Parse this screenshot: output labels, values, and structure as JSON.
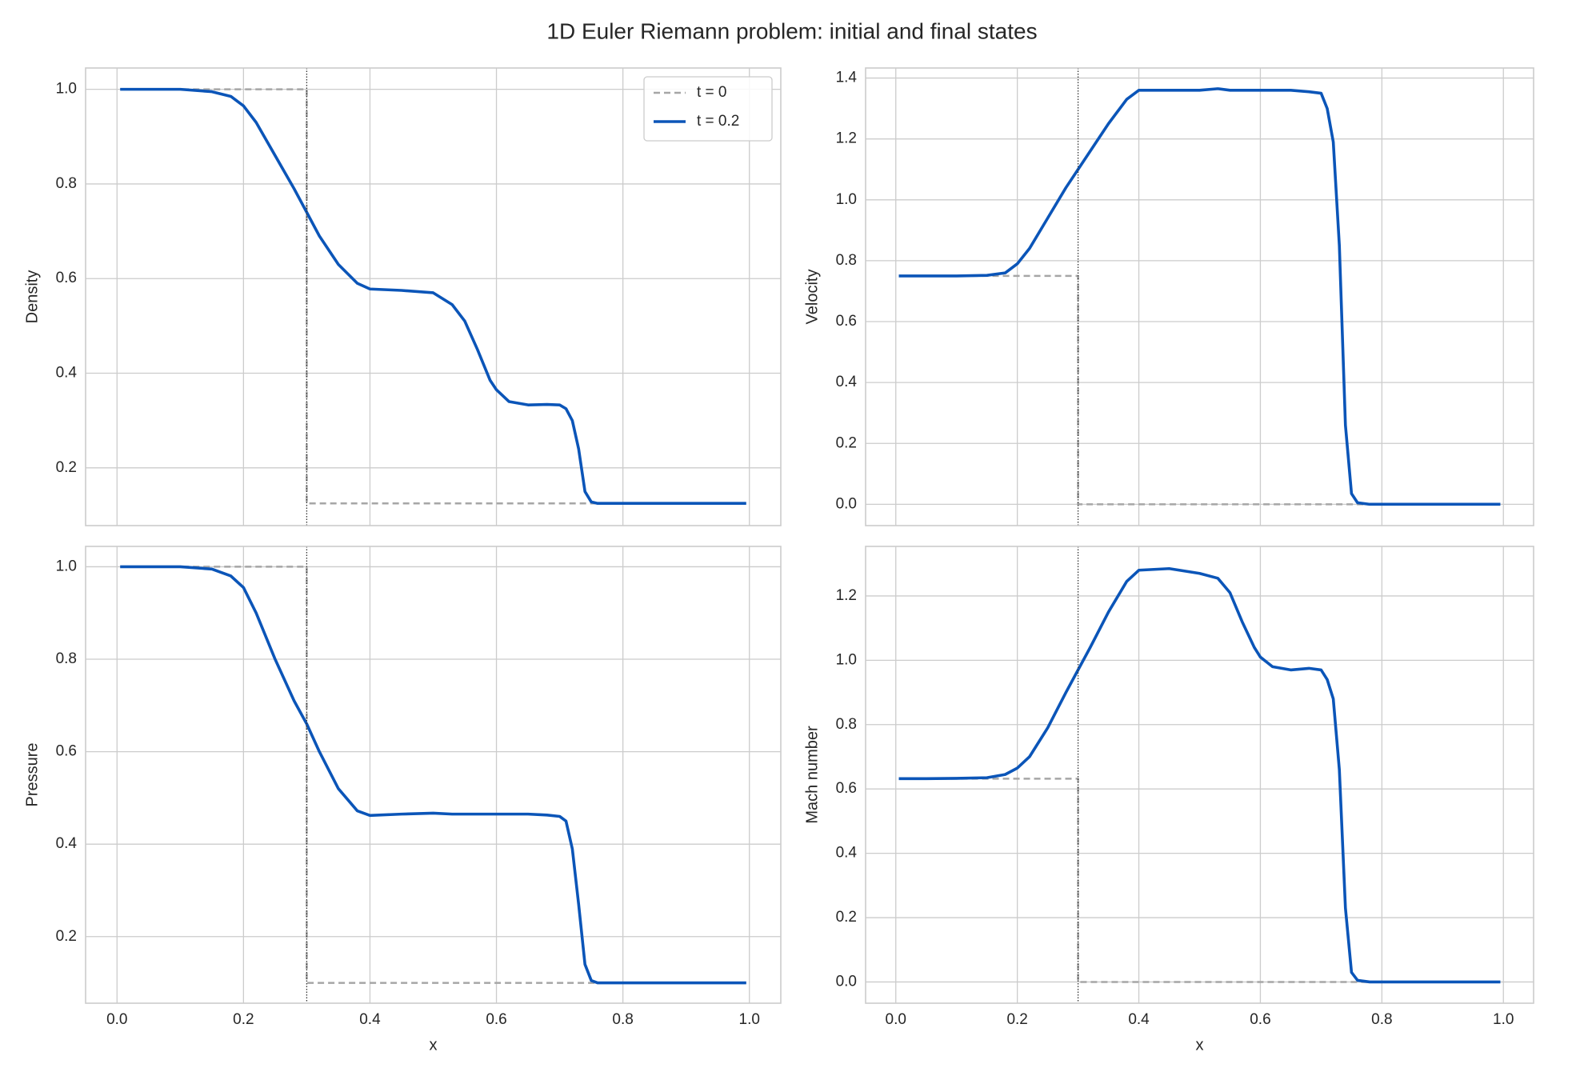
{
  "title": "1D Euler Riemann problem: initial and final states",
  "chart_data": [
    {
      "type": "line",
      "ylabel": "Density",
      "show_xticklabels": false,
      "xlim": [
        -0.0497,
        1.0497
      ],
      "xticks": [
        {
          "value": 0,
          "label": "0.0"
        },
        0.2,
        0.4,
        0.6,
        0.8,
        {
          "value": 1,
          "label": "1.0"
        }
      ],
      "ylim": [
        0.078,
        1.045
      ],
      "yticks": [
        0.2,
        0.4,
        0.6,
        0.8,
        {
          "value": 1,
          "label": "1.0"
        }
      ],
      "grid": true,
      "legend": "upper right",
      "vline": {
        "x": 0.3,
        "color": "#333333"
      },
      "series": [
        {
          "name": "t = 0",
          "color": "#a6a6a6",
          "style": "dashed",
          "x": [
            0.005,
            0.3,
            0.3,
            0.995
          ],
          "values": [
            1,
            1,
            0.125,
            0.125
          ]
        },
        {
          "name": "t = 0.2",
          "color": "#0b55b8",
          "style": "solid",
          "x": [
            0.005,
            0.05,
            0.1,
            0.15,
            0.18,
            0.2,
            0.22,
            0.25,
            0.28,
            0.3,
            0.32,
            0.35,
            0.38,
            0.4,
            0.45,
            0.5,
            0.53,
            0.55,
            0.57,
            0.59,
            0.6,
            0.62,
            0.65,
            0.68,
            0.7,
            0.71,
            0.72,
            0.73,
            0.74,
            0.75,
            0.76,
            0.78,
            0.8,
            0.85,
            0.9,
            0.95,
            0.995
          ],
          "values": [
            1,
            1,
            1,
            0.995,
            0.985,
            0.965,
            0.93,
            0.86,
            0.79,
            0.74,
            0.69,
            0.63,
            0.59,
            0.578,
            0.575,
            0.57,
            0.545,
            0.51,
            0.45,
            0.385,
            0.365,
            0.34,
            0.333,
            0.334,
            0.333,
            0.325,
            0.3,
            0.24,
            0.15,
            0.128,
            0.125,
            0.125,
            0.125,
            0.125,
            0.125,
            0.125,
            0.125
          ]
        }
      ]
    },
    {
      "type": "line",
      "ylabel": "Velocity",
      "show_xticklabels": false,
      "xlim": [
        -0.0497,
        1.0497
      ],
      "xticks": [
        {
          "value": 0,
          "label": "0.0"
        },
        0.2,
        0.4,
        0.6,
        0.8,
        {
          "value": 1,
          "label": "1.0"
        }
      ],
      "ylim": [
        -0.07,
        1.433
      ],
      "yticks": [
        {
          "value": 0,
          "label": "0.0"
        },
        0.2,
        0.4,
        0.6,
        0.8,
        {
          "value": 1,
          "label": "1.0"
        },
        1.2,
        1.4
      ],
      "grid": true,
      "vline": {
        "x": 0.3,
        "color": "#333333"
      },
      "series": [
        {
          "name": "t = 0",
          "color": "#a6a6a6",
          "style": "dashed",
          "x": [
            0.005,
            0.3,
            0.3,
            0.995
          ],
          "values": [
            0.75,
            0.75,
            0,
            0
          ]
        },
        {
          "name": "t = 0.2",
          "color": "#0b55b8",
          "style": "solid",
          "x": [
            0.005,
            0.05,
            0.1,
            0.15,
            0.18,
            0.2,
            0.22,
            0.25,
            0.28,
            0.3,
            0.32,
            0.35,
            0.38,
            0.4,
            0.45,
            0.5,
            0.53,
            0.55,
            0.57,
            0.59,
            0.6,
            0.62,
            0.65,
            0.68,
            0.7,
            0.71,
            0.72,
            0.73,
            0.74,
            0.75,
            0.76,
            0.78,
            0.8,
            0.85,
            0.9,
            0.95,
            0.995
          ],
          "values": [
            0.75,
            0.75,
            0.75,
            0.752,
            0.76,
            0.79,
            0.84,
            0.94,
            1.04,
            1.1,
            1.16,
            1.25,
            1.33,
            1.36,
            1.36,
            1.36,
            1.365,
            1.36,
            1.36,
            1.36,
            1.36,
            1.36,
            1.36,
            1.355,
            1.35,
            1.3,
            1.19,
            0.85,
            0.26,
            0.035,
            0.005,
            0,
            0,
            0,
            0,
            0,
            0
          ]
        }
      ]
    },
    {
      "type": "line",
      "ylabel": "Pressure",
      "xlabel": "x",
      "show_xticklabels": true,
      "xlim": [
        -0.0497,
        1.0497
      ],
      "xticks": [
        {
          "value": 0,
          "label": "0.0"
        },
        0.2,
        0.4,
        0.6,
        0.8,
        {
          "value": 1,
          "label": "1.0"
        }
      ],
      "ylim": [
        0.056,
        1.044
      ],
      "yticks": [
        0.2,
        0.4,
        0.6,
        0.8,
        {
          "value": 1,
          "label": "1.0"
        }
      ],
      "grid": true,
      "vline": {
        "x": 0.3,
        "color": "#333333"
      },
      "series": [
        {
          "name": "t = 0",
          "color": "#a6a6a6",
          "style": "dashed",
          "x": [
            0.005,
            0.3,
            0.3,
            0.995
          ],
          "values": [
            1,
            1,
            0.1,
            0.1
          ]
        },
        {
          "name": "t = 0.2",
          "color": "#0b55b8",
          "style": "solid",
          "x": [
            0.005,
            0.05,
            0.1,
            0.15,
            0.18,
            0.2,
            0.22,
            0.25,
            0.28,
            0.3,
            0.32,
            0.35,
            0.38,
            0.4,
            0.45,
            0.5,
            0.53,
            0.55,
            0.57,
            0.59,
            0.6,
            0.62,
            0.65,
            0.68,
            0.7,
            0.71,
            0.72,
            0.73,
            0.74,
            0.75,
            0.76,
            0.78,
            0.8,
            0.85,
            0.9,
            0.95,
            0.995
          ],
          "values": [
            1,
            1,
            1,
            0.995,
            0.98,
            0.955,
            0.9,
            0.8,
            0.71,
            0.66,
            0.6,
            0.52,
            0.472,
            0.462,
            0.465,
            0.467,
            0.465,
            0.465,
            0.465,
            0.465,
            0.465,
            0.465,
            0.465,
            0.463,
            0.46,
            0.45,
            0.39,
            0.27,
            0.14,
            0.105,
            0.1,
            0.1,
            0.1,
            0.1,
            0.1,
            0.1,
            0.1
          ]
        }
      ]
    },
    {
      "type": "line",
      "ylabel": "Mach number",
      "xlabel": "x",
      "show_xticklabels": true,
      "xlim": [
        -0.0497,
        1.0497
      ],
      "xticks": [
        {
          "value": 0,
          "label": "0.0"
        },
        0.2,
        0.4,
        0.6,
        0.8,
        {
          "value": 1,
          "label": "1.0"
        }
      ],
      "ylim": [
        -0.066,
        1.354
      ],
      "yticks": [
        {
          "value": 0,
          "label": "0.0"
        },
        0.2,
        0.4,
        0.6,
        0.8,
        {
          "value": 1,
          "label": "1.0"
        },
        1.2
      ],
      "grid": true,
      "vline": {
        "x": 0.3,
        "color": "#333333"
      },
      "series": [
        {
          "name": "t = 0",
          "color": "#a6a6a6",
          "style": "dashed",
          "x": [
            0.005,
            0.3,
            0.3,
            0.995
          ],
          "values": [
            0.632,
            0.632,
            0,
            0
          ]
        },
        {
          "name": "t = 0.2",
          "color": "#0b55b8",
          "style": "solid",
          "x": [
            0.005,
            0.05,
            0.1,
            0.15,
            0.18,
            0.2,
            0.22,
            0.25,
            0.28,
            0.3,
            0.32,
            0.35,
            0.38,
            0.4,
            0.45,
            0.5,
            0.53,
            0.55,
            0.57,
            0.59,
            0.6,
            0.62,
            0.65,
            0.68,
            0.7,
            0.71,
            0.72,
            0.73,
            0.74,
            0.75,
            0.76,
            0.78,
            0.8,
            0.85,
            0.9,
            0.95,
            0.995
          ],
          "values": [
            0.632,
            0.632,
            0.633,
            0.635,
            0.645,
            0.665,
            0.7,
            0.79,
            0.9,
            0.97,
            1.04,
            1.15,
            1.245,
            1.28,
            1.285,
            1.27,
            1.255,
            1.21,
            1.12,
            1.04,
            1.01,
            0.98,
            0.97,
            0.975,
            0.97,
            0.94,
            0.88,
            0.66,
            0.23,
            0.03,
            0.005,
            0,
            0,
            0,
            0,
            0,
            0
          ]
        }
      ]
    }
  ]
}
